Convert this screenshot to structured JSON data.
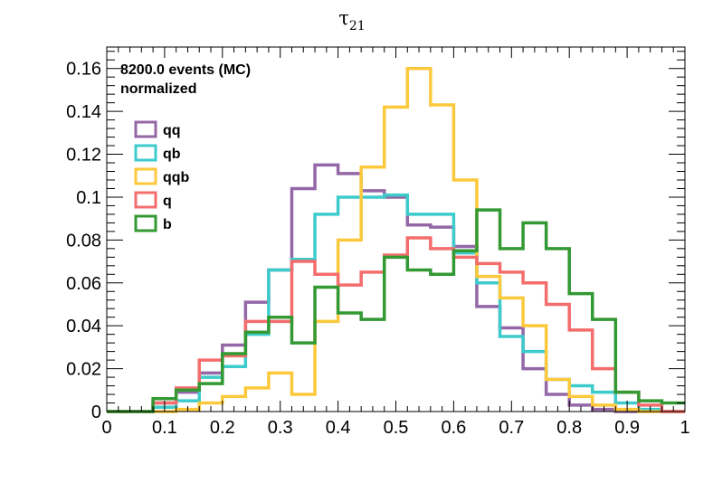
{
  "chart_data": {
    "type": "histogram",
    "title": "τ",
    "title_subscript": "21",
    "info_lines": [
      "8200.0 events (MC)",
      "normalized"
    ],
    "xlim": [
      0,
      1
    ],
    "ylim": [
      0,
      0.17
    ],
    "bin_edges": [
      0,
      0.04,
      0.08,
      0.12,
      0.16,
      0.2,
      0.24,
      0.28,
      0.32,
      0.36,
      0.4,
      0.44,
      0.48,
      0.52,
      0.56,
      0.6,
      0.64,
      0.68,
      0.72,
      0.76,
      0.8,
      0.84,
      0.88,
      0.92,
      0.96,
      1.0
    ],
    "x_ticks": [
      0,
      0.1,
      0.2,
      0.3,
      0.4,
      0.5,
      0.6,
      0.7,
      0.8,
      0.9,
      1
    ],
    "x_tick_labels": [
      "0",
      "0.1",
      "0.2",
      "0.3",
      "0.4",
      "0.5",
      "0.6",
      "0.7",
      "0.8",
      "0.9",
      "1"
    ],
    "y_ticks": [
      0,
      0.02,
      0.04,
      0.06,
      0.08,
      0.1,
      0.12,
      0.14,
      0.16
    ],
    "y_tick_labels": [
      "0",
      "0.02",
      "0.04",
      "0.06",
      "0.08",
      "0.1",
      "0.12",
      "0.14",
      "0.16"
    ],
    "legend_position": "top-left",
    "series": [
      {
        "name": "qq",
        "color": "#9467a6",
        "values": [
          0,
          0,
          0.004,
          0.009,
          0.018,
          0.031,
          0.051,
          0.066,
          0.104,
          0.115,
          0.111,
          0.103,
          0.1,
          0.087,
          0.086,
          0.077,
          0.049,
          0.039,
          0.02,
          0.008,
          0.003,
          0.001,
          0,
          0,
          0
        ]
      },
      {
        "name": "qb",
        "color": "#3ecbcb",
        "values": [
          0,
          0,
          0.002,
          0.005,
          0.016,
          0.021,
          0.036,
          0.066,
          0.071,
          0.092,
          0.1,
          0.1,
          0.101,
          0.092,
          0.092,
          0.074,
          0.06,
          0.035,
          0.028,
          0.015,
          0.012,
          0.009,
          0.004,
          0.001,
          0
        ]
      },
      {
        "name": "qqb",
        "color": "#fcc93c",
        "values": [
          0,
          0,
          0,
          0.001,
          0.004,
          0.007,
          0.011,
          0.018,
          0.008,
          0.042,
          0.08,
          0.114,
          0.142,
          0.16,
          0.143,
          0.108,
          0.063,
          0.053,
          0.04,
          0.015,
          0.007,
          0.003,
          0.001,
          0,
          0
        ]
      },
      {
        "name": "q",
        "color": "#f46d6d",
        "values": [
          0,
          0,
          0.004,
          0.011,
          0.024,
          0.026,
          0.042,
          0.042,
          0.07,
          0.064,
          0.059,
          0.065,
          0.073,
          0.081,
          0.076,
          0.072,
          0.069,
          0.065,
          0.06,
          0.05,
          0.038,
          0.02,
          0.009,
          0.003,
          0
        ]
      },
      {
        "name": "b",
        "color": "#339933",
        "values": [
          0,
          0,
          0.006,
          0.01,
          0.013,
          0.027,
          0.037,
          0.044,
          0.032,
          0.058,
          0.046,
          0.043,
          0.072,
          0.066,
          0.064,
          0.075,
          0.094,
          0.076,
          0.088,
          0.076,
          0.055,
          0.043,
          0.009,
          0.005,
          0.004
        ]
      }
    ]
  }
}
